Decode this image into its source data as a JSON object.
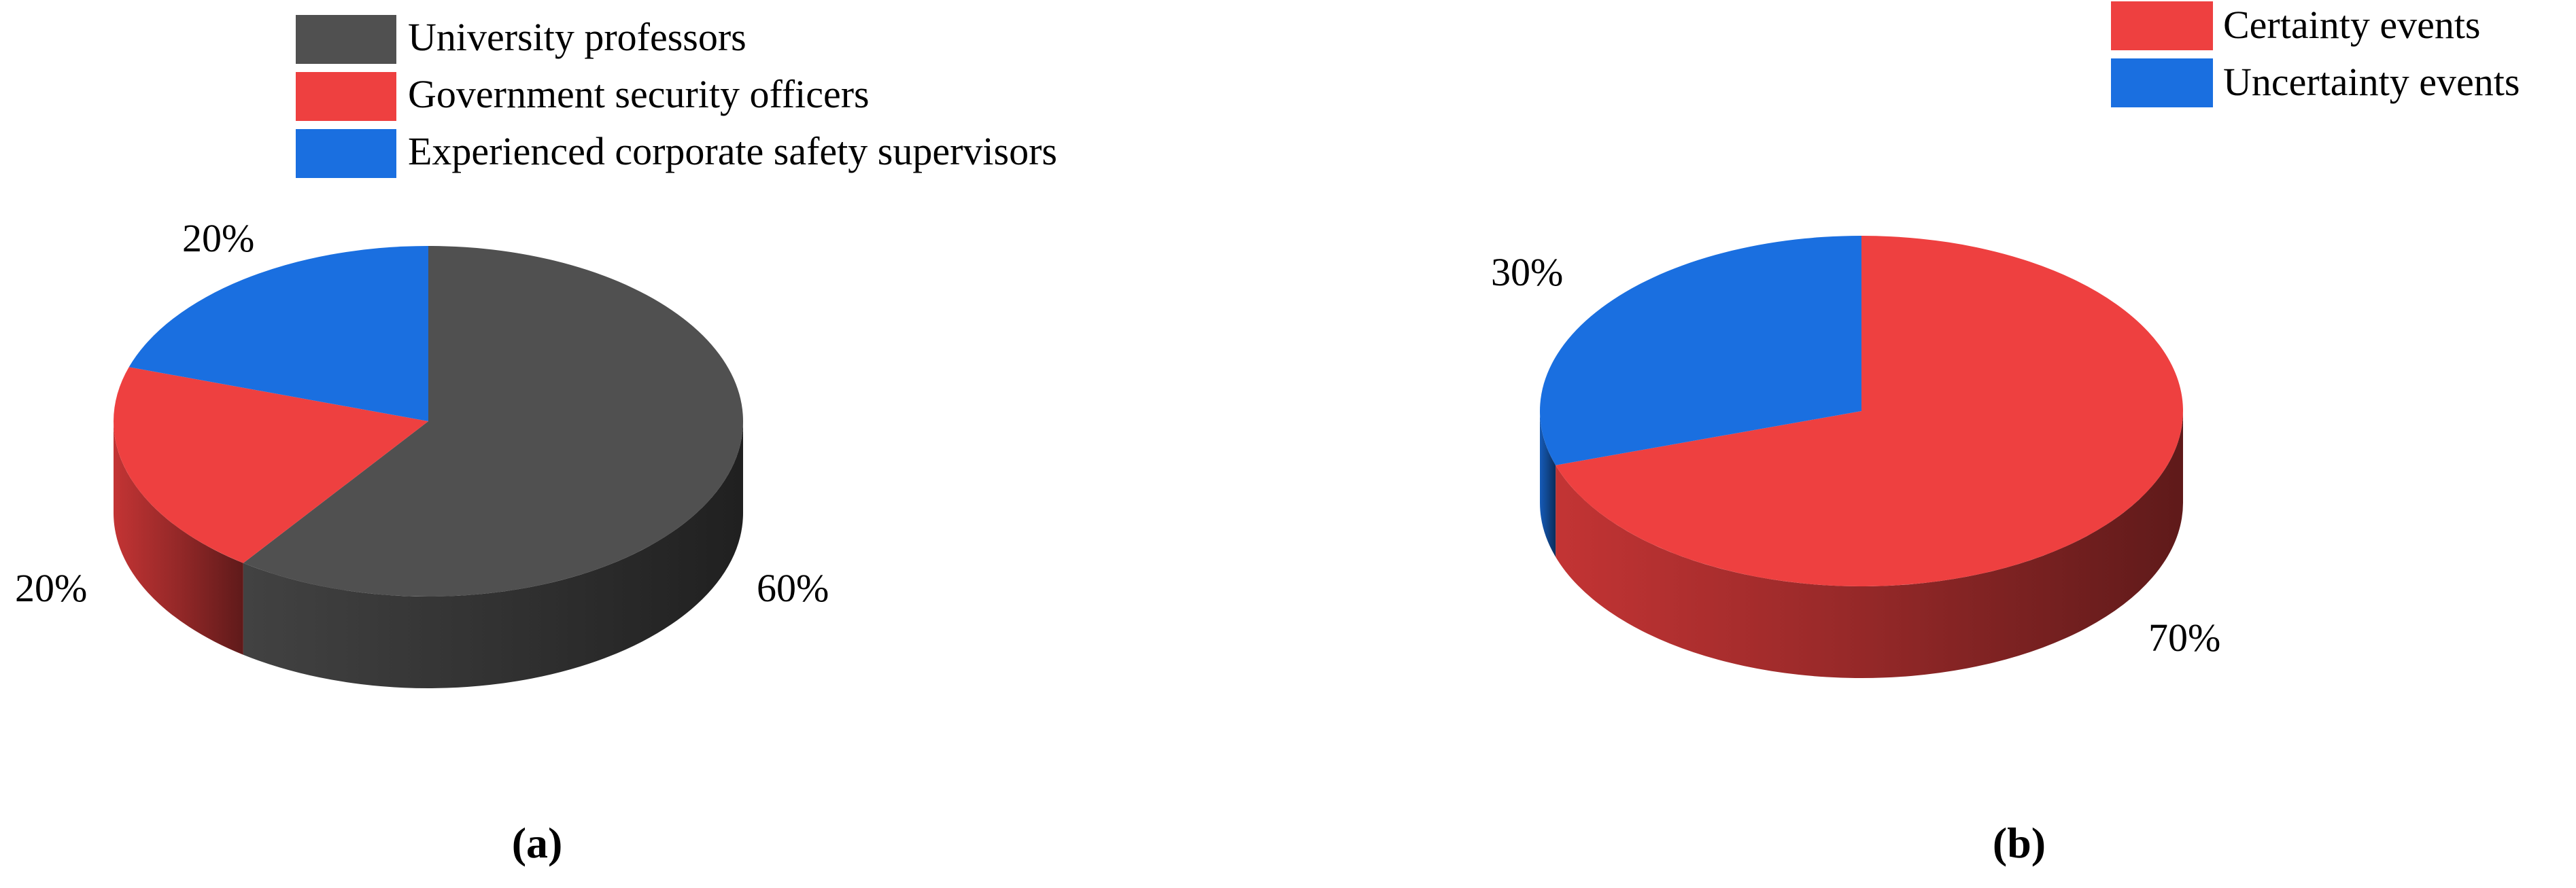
{
  "chart_data": [
    {
      "type": "pie",
      "subtitle": "(a)",
      "legend_position": "top",
      "categories": [
        "University professors",
        "Government security officers",
        "Experienced corporate safety supervisors"
      ],
      "values": [
        60,
        20,
        20
      ],
      "data_labels": [
        "60%",
        "20%",
        "20%"
      ],
      "colors": [
        "#505050",
        "#ee4040",
        "#1a6fe0"
      ]
    },
    {
      "type": "pie",
      "subtitle": "(b)",
      "legend_position": "top-right",
      "categories": [
        "Certainty events",
        "Uncertainty events"
      ],
      "values": [
        70,
        30
      ],
      "data_labels": [
        "70%",
        "30%"
      ],
      "colors": [
        "#ee4040",
        "#1a6fe0"
      ]
    }
  ]
}
